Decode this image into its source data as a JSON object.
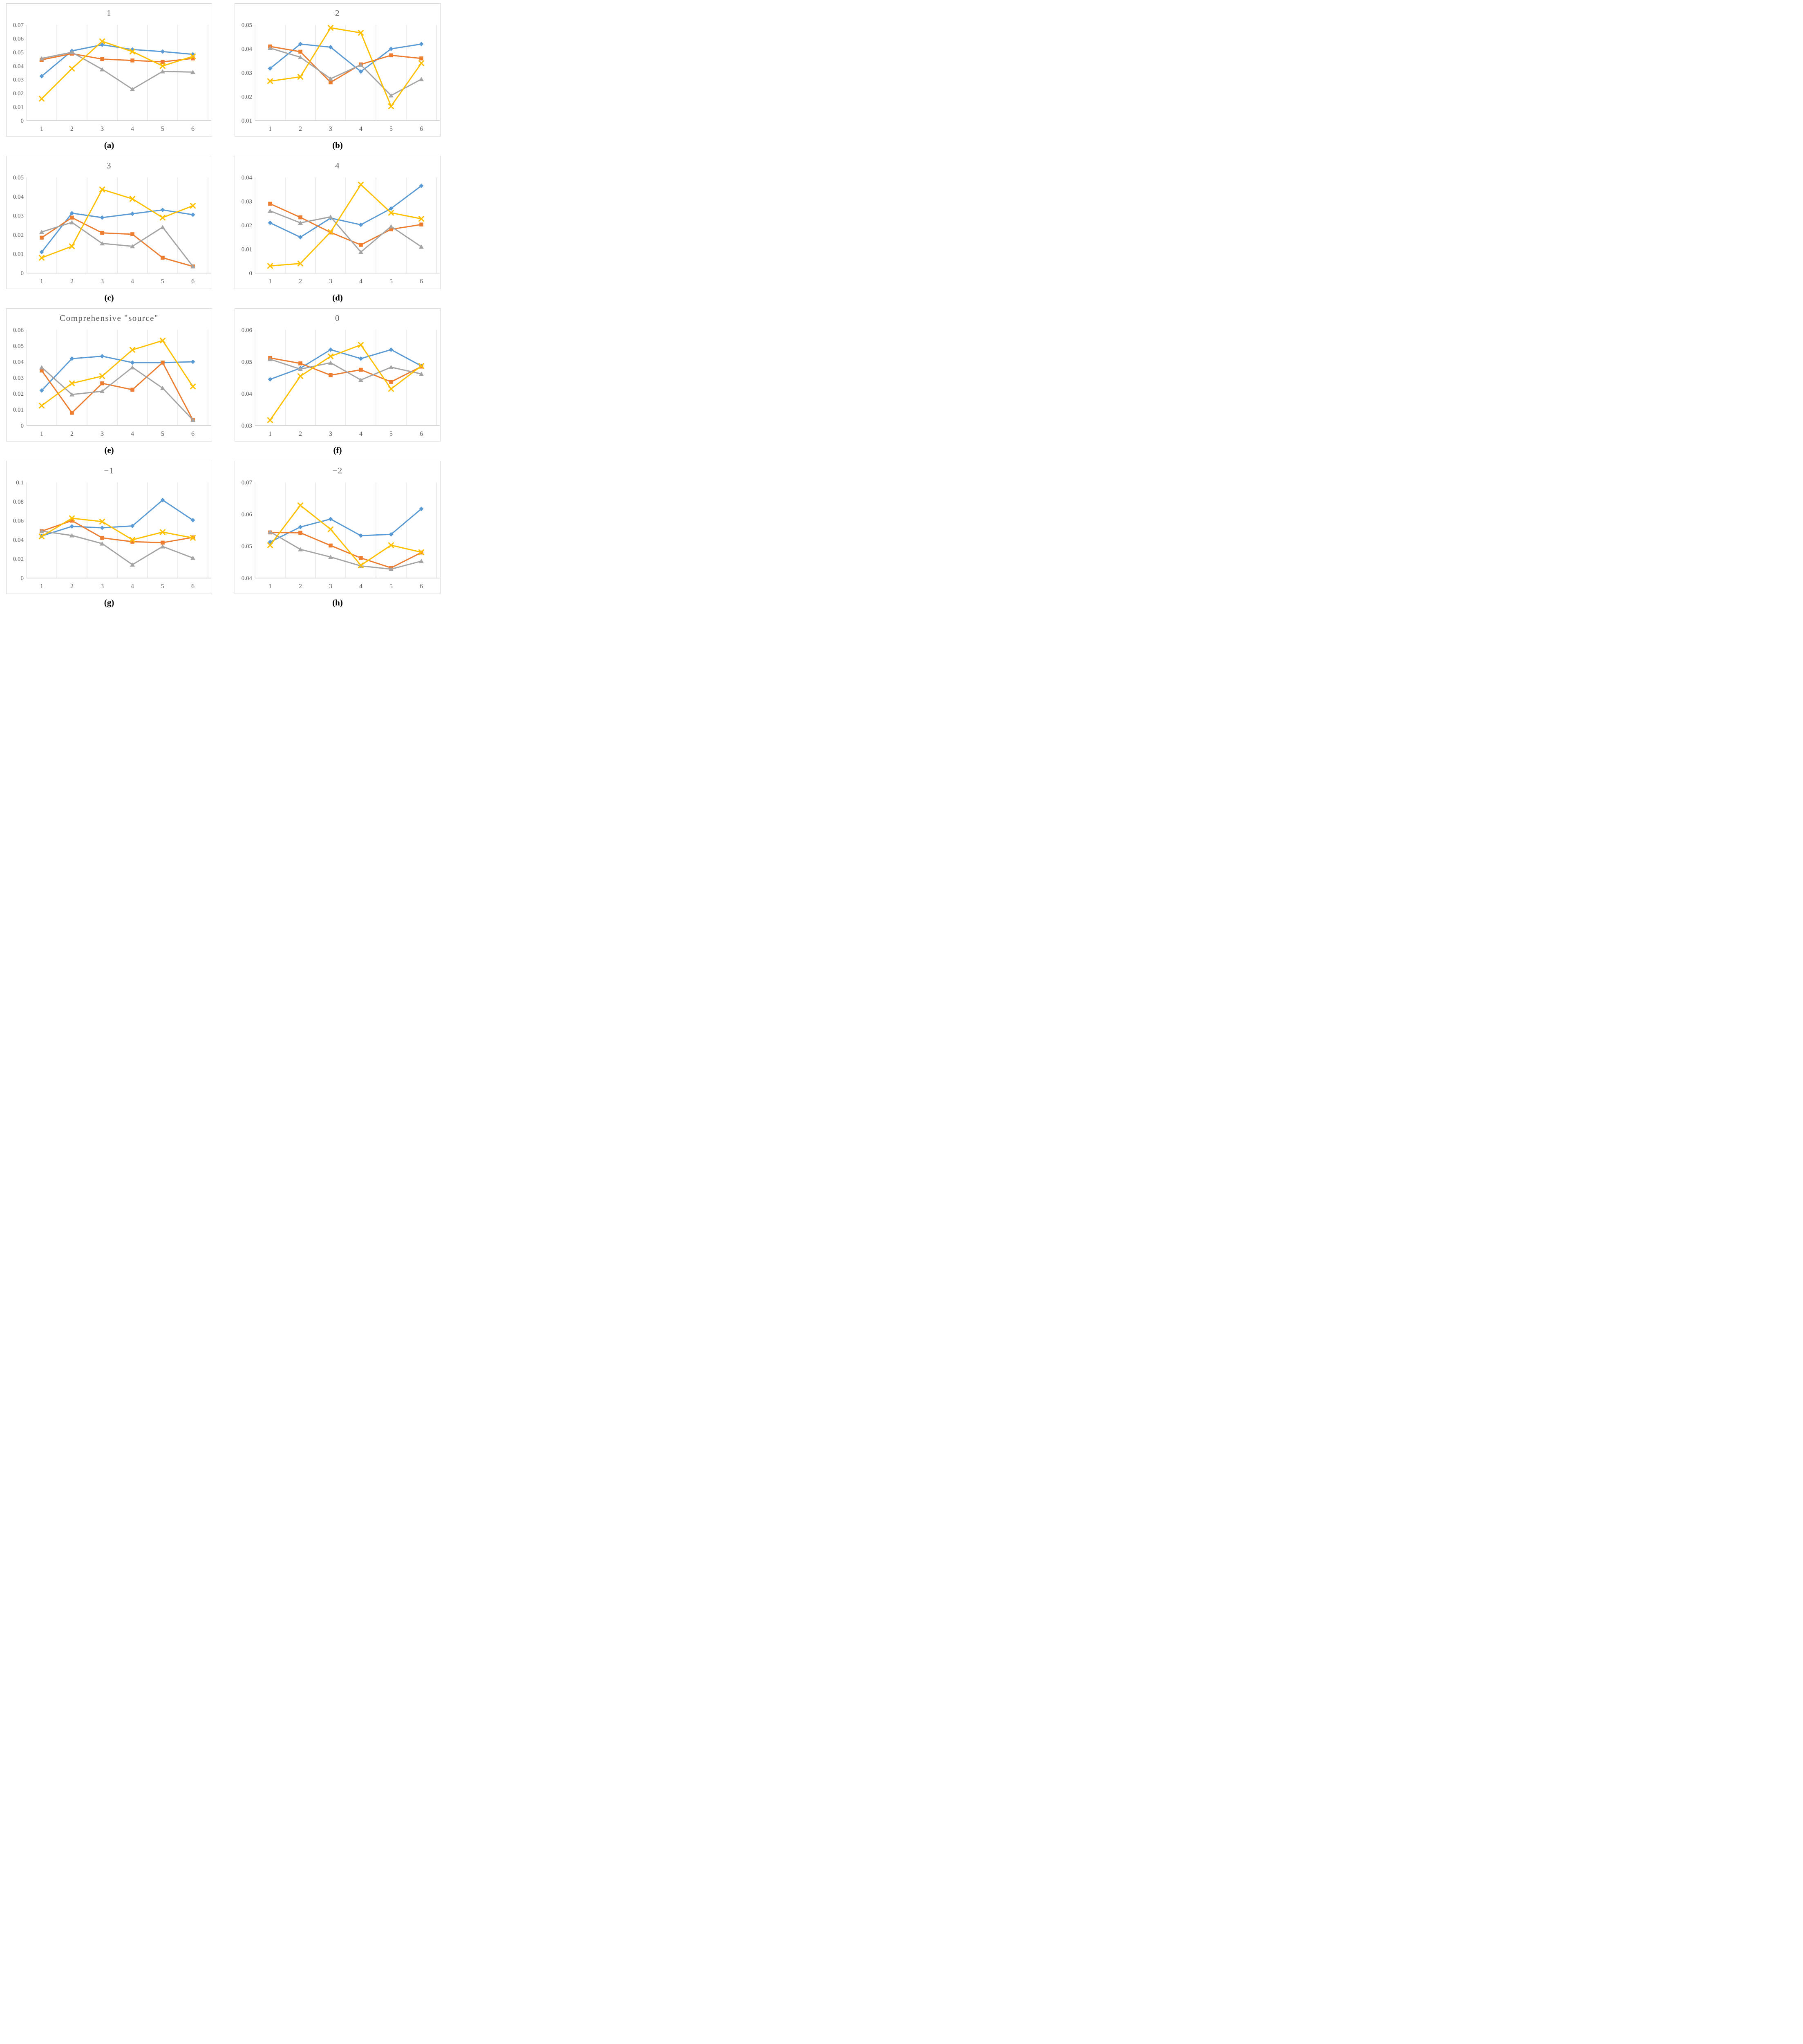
{
  "page": {
    "background": "#ffffff"
  },
  "colors": {
    "blue": "#5B9BD5",
    "orange": "#ED7D31",
    "gray": "#A5A5A5",
    "yellow": "#FFC000",
    "gridline": "#D9D9D9",
    "axis_line": "#BFBFBF",
    "title_text": "#595959",
    "tick_text": "#595959",
    "caption_text": "#000000",
    "box_border": "#D9D9D9"
  },
  "chart_data": [
    {
      "type": "line",
      "title": "1",
      "caption": "(a)",
      "categories": [
        "1",
        "2",
        "3",
        "4",
        "5",
        "6"
      ],
      "ylim": [
        0,
        0.07
      ],
      "yticks": [
        "0",
        "0.01",
        "0.02",
        "0.03",
        "0.04",
        "0.05",
        "0.06",
        "0.07"
      ],
      "grid": "vertical",
      "legend": "none",
      "series": [
        {
          "name": "blue-diamond",
          "color": "blue",
          "marker": "diamond",
          "values": [
            0.0325,
            0.051,
            0.0555,
            0.052,
            0.0505,
            0.0485
          ]
        },
        {
          "name": "orange-square",
          "color": "orange",
          "marker": "square",
          "values": [
            0.0445,
            0.049,
            0.045,
            0.044,
            0.043,
            0.0455
          ]
        },
        {
          "name": "gray-triangle",
          "color": "gray",
          "marker": "triangle",
          "values": [
            0.0455,
            0.05,
            0.0375,
            0.023,
            0.036,
            0.0355
          ]
        },
        {
          "name": "yellow-x",
          "color": "yellow",
          "marker": "x",
          "values": [
            0.016,
            0.038,
            0.058,
            0.0505,
            0.04,
            0.047
          ]
        }
      ]
    },
    {
      "type": "line",
      "title": "2",
      "caption": "(b)",
      "categories": [
        "1",
        "2",
        "3",
        "4",
        "5",
        "6"
      ],
      "ylim": [
        0.01,
        0.05
      ],
      "yticks": [
        "0.01",
        "0.02",
        "0.03",
        "0.04",
        "0.05"
      ],
      "grid": "vertical",
      "legend": "none",
      "series": [
        {
          "name": "blue-diamond",
          "color": "blue",
          "marker": "diamond",
          "values": [
            0.0318,
            0.042,
            0.0407,
            0.0305,
            0.04,
            0.042
          ]
        },
        {
          "name": "orange-square",
          "color": "orange",
          "marker": "square",
          "values": [
            0.041,
            0.0388,
            0.026,
            0.0335,
            0.0373,
            0.036
          ]
        },
        {
          "name": "gray-triangle",
          "color": "gray",
          "marker": "triangle",
          "values": [
            0.0403,
            0.0365,
            0.0275,
            0.0333,
            0.0205,
            0.0273
          ]
        },
        {
          "name": "yellow-x",
          "color": "yellow",
          "marker": "x",
          "values": [
            0.0265,
            0.0283,
            0.0488,
            0.0467,
            0.016,
            0.034
          ]
        }
      ]
    },
    {
      "type": "line",
      "title": "3",
      "caption": "(c)",
      "categories": [
        "1",
        "2",
        "3",
        "4",
        "5",
        "6"
      ],
      "ylim": [
        0,
        0.05
      ],
      "yticks": [
        "0",
        "0.01",
        "0.02",
        "0.03",
        "0.04",
        "0.05"
      ],
      "grid": "vertical",
      "legend": "none",
      "series": [
        {
          "name": "blue-diamond",
          "color": "blue",
          "marker": "diamond",
          "values": [
            0.011,
            0.0313,
            0.029,
            0.031,
            0.033,
            0.0305
          ]
        },
        {
          "name": "orange-square",
          "color": "orange",
          "marker": "square",
          "values": [
            0.0185,
            0.029,
            0.021,
            0.0203,
            0.008,
            0.0035
          ]
        },
        {
          "name": "gray-triangle",
          "color": "gray",
          "marker": "triangle",
          "values": [
            0.0215,
            0.0265,
            0.0155,
            0.014,
            0.024,
            0.0035
          ]
        },
        {
          "name": "yellow-x",
          "color": "yellow",
          "marker": "x",
          "values": [
            0.008,
            0.014,
            0.0437,
            0.0388,
            0.029,
            0.0352
          ]
        }
      ]
    },
    {
      "type": "line",
      "title": "4",
      "caption": "(d)",
      "categories": [
        "1",
        "2",
        "3",
        "4",
        "5",
        "6"
      ],
      "ylim": [
        0,
        0.04
      ],
      "yticks": [
        "0",
        "0.01",
        "0.02",
        "0.03",
        "0.04"
      ],
      "grid": "vertical",
      "legend": "none",
      "series": [
        {
          "name": "blue-diamond",
          "color": "blue",
          "marker": "diamond",
          "values": [
            0.021,
            0.015,
            0.023,
            0.0202,
            0.027,
            0.0365
          ]
        },
        {
          "name": "orange-square",
          "color": "orange",
          "marker": "square",
          "values": [
            0.029,
            0.0233,
            0.017,
            0.0118,
            0.0183,
            0.0203
          ]
        },
        {
          "name": "gray-triangle",
          "color": "gray",
          "marker": "triangle",
          "values": [
            0.026,
            0.021,
            0.0235,
            0.0088,
            0.0195,
            0.011
          ]
        },
        {
          "name": "yellow-x",
          "color": "yellow",
          "marker": "x",
          "values": [
            0.003,
            0.004,
            0.0172,
            0.037,
            0.0252,
            0.0227
          ]
        }
      ]
    },
    {
      "type": "line",
      "title": "Comprehensive \"source\"",
      "caption": "(e)",
      "categories": [
        "1",
        "2",
        "3",
        "4",
        "5",
        "6"
      ],
      "ylim": [
        0,
        0.06
      ],
      "yticks": [
        "0",
        "0.01",
        "0.02",
        "0.03",
        "0.04",
        "0.05",
        "0.06"
      ],
      "grid": "vertical",
      "legend": "none",
      "series": [
        {
          "name": "blue-diamond",
          "color": "blue",
          "marker": "diamond",
          "values": [
            0.022,
            0.042,
            0.0435,
            0.0395,
            0.0395,
            0.04
          ]
        },
        {
          "name": "orange-square",
          "color": "orange",
          "marker": "square",
          "values": [
            0.0345,
            0.008,
            0.0265,
            0.0225,
            0.0395,
            0.0035
          ]
        },
        {
          "name": "gray-triangle",
          "color": "gray",
          "marker": "triangle",
          "values": [
            0.0365,
            0.0195,
            0.0215,
            0.0365,
            0.0235,
            0.0035
          ]
        },
        {
          "name": "yellow-x",
          "color": "yellow",
          "marker": "x",
          "values": [
            0.0125,
            0.0265,
            0.031,
            0.0475,
            0.0533,
            0.0245
          ]
        }
      ]
    },
    {
      "type": "line",
      "title": "0",
      "caption": "(f)",
      "categories": [
        "1",
        "2",
        "3",
        "4",
        "5",
        "6"
      ],
      "ylim": [
        0.03,
        0.06
      ],
      "yticks": [
        "0.03",
        "0.04",
        "0.05",
        "0.06"
      ],
      "grid": "vertical",
      "legend": "none",
      "series": [
        {
          "name": "blue-diamond",
          "color": "blue",
          "marker": "diamond",
          "values": [
            0.0445,
            0.048,
            0.0538,
            0.051,
            0.0538,
            0.0487
          ]
        },
        {
          "name": "orange-square",
          "color": "orange",
          "marker": "square",
          "values": [
            0.0512,
            0.0495,
            0.0458,
            0.0475,
            0.0437,
            0.0485
          ]
        },
        {
          "name": "gray-triangle",
          "color": "gray",
          "marker": "triangle",
          "values": [
            0.0508,
            0.0477,
            0.0497,
            0.0443,
            0.0483,
            0.0462
          ]
        },
        {
          "name": "yellow-x",
          "color": "yellow",
          "marker": "x",
          "values": [
            0.0317,
            0.0455,
            0.0517,
            0.0553,
            0.0415,
            0.0487
          ]
        }
      ]
    },
    {
      "type": "line",
      "title": "−1",
      "caption": "(g)",
      "categories": [
        "1",
        "2",
        "3",
        "4",
        "5",
        "6"
      ],
      "ylim": [
        0,
        0.1
      ],
      "yticks": [
        "0",
        "0.02",
        "0.04",
        "0.06",
        "0.08",
        "0.1"
      ],
      "grid": "vertical",
      "legend": "none",
      "series": [
        {
          "name": "blue-diamond",
          "color": "blue",
          "marker": "diamond",
          "values": [
            0.044,
            0.054,
            0.0525,
            0.0545,
            0.0815,
            0.0605
          ]
        },
        {
          "name": "orange-square",
          "color": "orange",
          "marker": "square",
          "values": [
            0.049,
            0.06,
            0.042,
            0.038,
            0.037,
            0.0425
          ]
        },
        {
          "name": "gray-triangle",
          "color": "gray",
          "marker": "triangle",
          "values": [
            0.049,
            0.0445,
            0.036,
            0.014,
            0.033,
            0.021
          ]
        },
        {
          "name": "yellow-x",
          "color": "yellow",
          "marker": "x",
          "values": [
            0.0435,
            0.0625,
            0.059,
            0.04,
            0.048,
            0.042
          ]
        }
      ]
    },
    {
      "type": "line",
      "title": "−2",
      "caption": "(h)",
      "categories": [
        "1",
        "2",
        "3",
        "4",
        "5",
        "6"
      ],
      "ylim": [
        0.04,
        0.07
      ],
      "yticks": [
        "0.04",
        "0.05",
        "0.06",
        "0.07"
      ],
      "grid": "vertical",
      "legend": "none",
      "series": [
        {
          "name": "blue-diamond",
          "color": "blue",
          "marker": "diamond",
          "values": [
            0.0513,
            0.056,
            0.0585,
            0.0533,
            0.0537,
            0.0617
          ]
        },
        {
          "name": "orange-square",
          "color": "orange",
          "marker": "square",
          "values": [
            0.0543,
            0.0542,
            0.0502,
            0.0463,
            0.0432,
            0.048
          ]
        },
        {
          "name": "gray-triangle",
          "color": "gray",
          "marker": "triangle",
          "values": [
            0.0545,
            0.049,
            0.0466,
            0.0438,
            0.0428,
            0.0453
          ]
        },
        {
          "name": "yellow-x",
          "color": "yellow",
          "marker": "x",
          "values": [
            0.0503,
            0.0628,
            0.0553,
            0.044,
            0.0503,
            0.0481
          ]
        }
      ]
    }
  ]
}
